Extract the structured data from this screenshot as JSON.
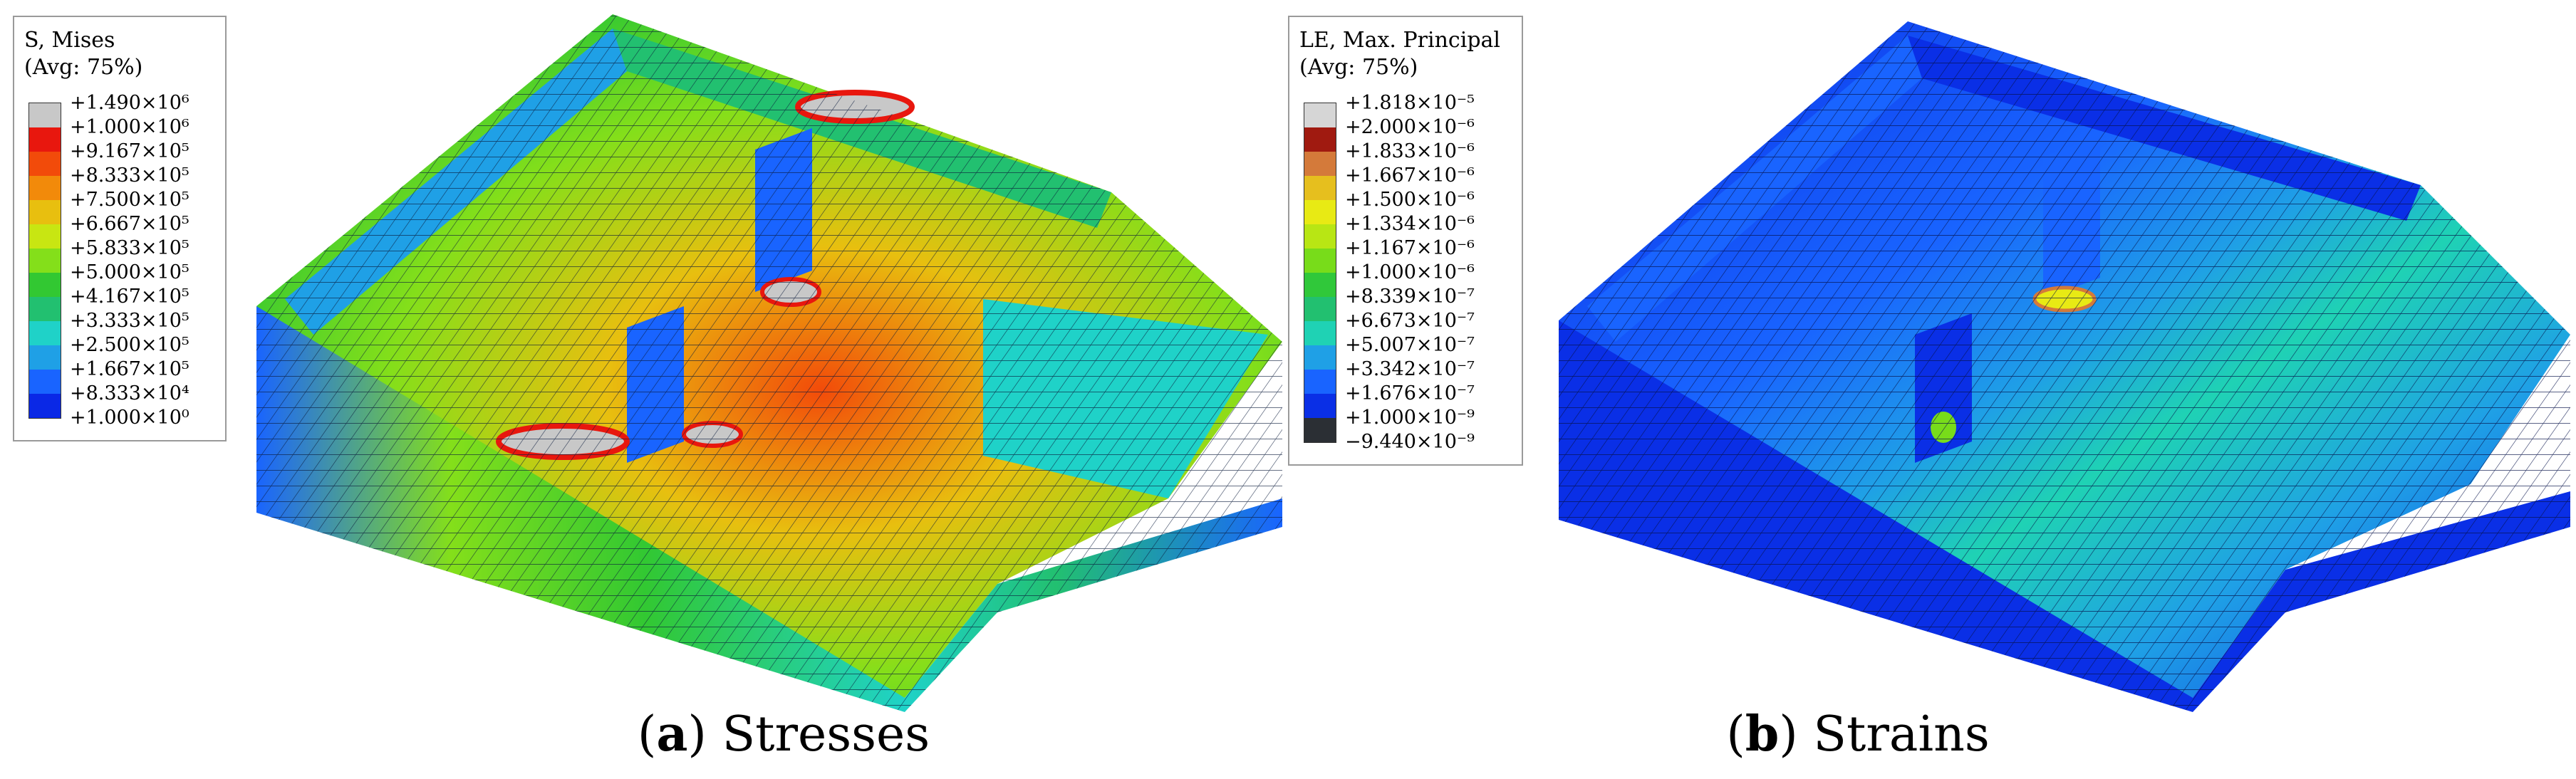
{
  "panel_a": {
    "caption_open": "(",
    "caption_letter": "a",
    "caption_close": ")",
    "caption_text": " Stresses",
    "legend_title": "S, Mises",
    "legend_avg": "(Avg: 75%)",
    "legend_ticks": [
      "+1.490×10⁶",
      "+1.000×10⁶",
      "+9.167×10⁵",
      "+8.333×10⁵",
      "+7.500×10⁵",
      "+6.667×10⁵",
      "+5.833×10⁵",
      "+5.000×10⁵",
      "+4.167×10⁵",
      "+3.333×10⁵",
      "+2.500×10⁵",
      "+1.667×10⁵",
      "+8.333×10⁴",
      "+1.000×10⁰"
    ],
    "legend_colors": [
      "#c8c8c8",
      "#e8170e",
      "#f24b0a",
      "#f28a0a",
      "#e8bf0f",
      "#c8e612",
      "#84df1a",
      "#32c832",
      "#22c070",
      "#1fd2c8",
      "#1fa0e6",
      "#1964ff",
      "#0a28e6"
    ]
  },
  "panel_b": {
    "caption_open": "(",
    "caption_letter": "b",
    "caption_close": ")",
    "caption_text": " Strains",
    "legend_title": "LE, Max. Principal",
    "legend_avg": "(Avg: 75%)",
    "legend_ticks": [
      "+1.818×10⁻⁵",
      "+2.000×10⁻⁶",
      "+1.833×10⁻⁶",
      "+1.667×10⁻⁶",
      "+1.500×10⁻⁶",
      "+1.334×10⁻⁶",
      "+1.167×10⁻⁶",
      "+1.000×10⁻⁶",
      "+8.339×10⁻⁷",
      "+6.673×10⁻⁷",
      "+5.007×10⁻⁷",
      "+3.342×10⁻⁷",
      "+1.676×10⁻⁷",
      "+1.000×10⁻⁹",
      "−9.440×10⁻⁹"
    ],
    "legend_colors": [
      "#d6d6d6",
      "#a01a10",
      "#d47a3a",
      "#e6bf1e",
      "#e8ea14",
      "#b8e614",
      "#78dc1a",
      "#30c83a",
      "#22c070",
      "#1fd2b4",
      "#1fa0e6",
      "#1964ff",
      "#0a2fe6",
      "#2b2f34"
    ]
  }
}
